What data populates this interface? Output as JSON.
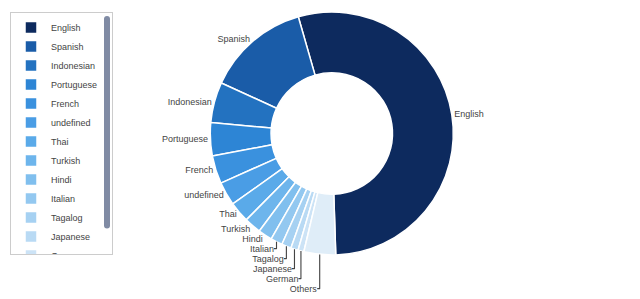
{
  "chart_data": {
    "type": "donut",
    "categories": [
      "English",
      "Spanish",
      "Indonesian",
      "Portuguese",
      "French",
      "undefined",
      "Thai",
      "Turkish",
      "Hindi",
      "Italian",
      "Tagalog",
      "Japanese",
      "German",
      "Others"
    ],
    "values": [
      55.0,
      14.0,
      5.5,
      4.5,
      3.8,
      3.2,
      2.8,
      2.3,
      1.9,
      1.6,
      1.3,
      1.0,
      0.8,
      4.3
    ],
    "colors": [
      "#0d2a5e",
      "#1a5ca8",
      "#2372c0",
      "#2d85d5",
      "#3a91de",
      "#4a9de5",
      "#5aaae9",
      "#6db5ec",
      "#80bfee",
      "#93c8f0",
      "#a6d1f2",
      "#b9daf4",
      "#cce3f6",
      "#dfedf8"
    ],
    "legend": "left"
  }
}
